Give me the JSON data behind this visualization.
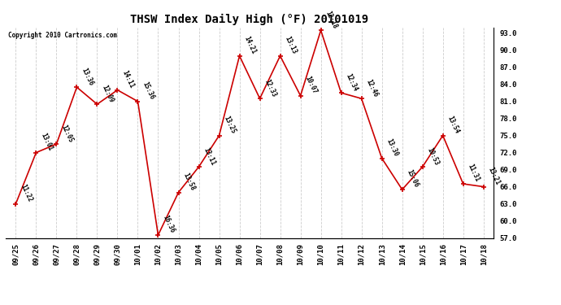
{
  "title": "THSW Index Daily High (°F) 20101019",
  "copyright": "Copyright 2010 Cartronics.com",
  "ylim": [
    57.0,
    94.0
  ],
  "yticks": [
    57.0,
    60.0,
    63.0,
    66.0,
    69.0,
    72.0,
    75.0,
    78.0,
    81.0,
    84.0,
    87.0,
    90.0,
    93.0
  ],
  "background_color": "#ffffff",
  "line_color": "#cc0000",
  "marker_color": "#cc0000",
  "dates": [
    "09/25",
    "09/26",
    "09/27",
    "09/28",
    "09/29",
    "09/30",
    "10/01",
    "10/02",
    "10/03",
    "10/04",
    "10/05",
    "10/06",
    "10/07",
    "10/08",
    "10/09",
    "10/10",
    "10/11",
    "10/12",
    "10/13",
    "10/14",
    "10/15",
    "10/16",
    "10/17",
    "10/18"
  ],
  "values": [
    63.0,
    72.0,
    73.5,
    83.5,
    80.5,
    83.0,
    81.0,
    57.5,
    65.0,
    69.5,
    75.0,
    89.0,
    81.5,
    89.0,
    82.0,
    93.5,
    82.5,
    81.5,
    71.0,
    65.5,
    69.5,
    75.0,
    66.5,
    66.0
  ],
  "labels": [
    "11:22",
    "13:01",
    "12:05",
    "13:36",
    "12:09",
    "14:11",
    "15:36",
    "16:36",
    "13:58",
    "13:11",
    "13:25",
    "14:21",
    "12:33",
    "13:13",
    "10:07",
    "12:18",
    "12:34",
    "12:46",
    "13:30",
    "15:06",
    "10:53",
    "13:54",
    "11:31",
    "13:21"
  ],
  "grid_color": "#cccccc",
  "title_fontsize": 10,
  "tick_fontsize": 6.5,
  "label_fontsize": 5.5,
  "copyright_fontsize": 5.5
}
